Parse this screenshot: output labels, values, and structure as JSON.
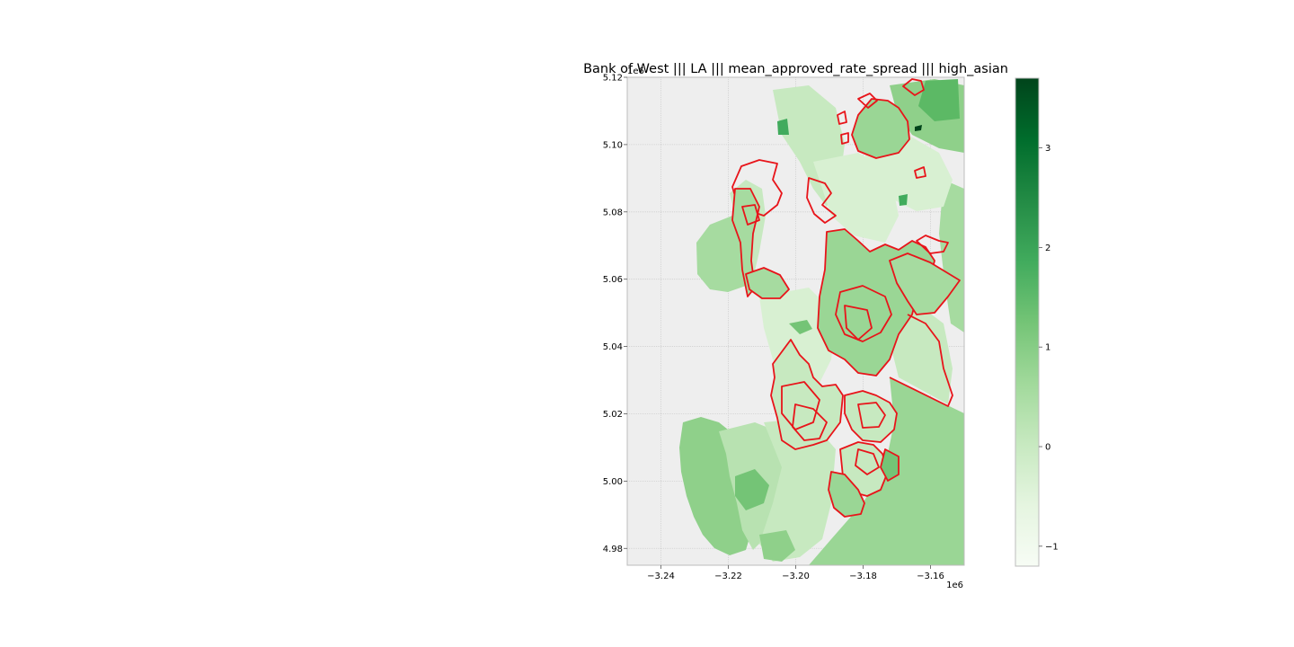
{
  "chart_data": {
    "type": "choropleth",
    "title": "Bank of West ||| LA ||| mean_approved_rate_spread ||| high_asian",
    "xlim": [
      -3250000,
      -3150000
    ],
    "ylim": [
      4975000,
      5120000
    ],
    "x_ticks": [
      -3240000,
      -3220000,
      -3200000,
      -3180000,
      -3160000
    ],
    "x_tick_labels": [
      "−3.24",
      "−3.22",
      "−3.20",
      "−3.18",
      "−3.16"
    ],
    "y_ticks": [
      4980000,
      5000000,
      5020000,
      5040000,
      5060000,
      5080000,
      5100000,
      5120000
    ],
    "y_tick_labels": [
      "4.98",
      "5.00",
      "5.02",
      "5.04",
      "5.06",
      "5.08",
      "5.10",
      "5.12"
    ],
    "x_offset_label": "1e6",
    "y_offset_label": "1e6",
    "grid": true,
    "colormap": "Greens",
    "colorbar": {
      "range": [
        -1.2,
        3.7
      ],
      "ticks": [
        -1,
        0,
        1,
        2,
        3
      ],
      "tick_labels": [
        "−1",
        "0",
        "1",
        "2",
        "3"
      ],
      "placement": "right"
    },
    "highlight_color": "#e8141a",
    "highlight_meaning_shown": "red outlines mark high_asian tracts"
  }
}
